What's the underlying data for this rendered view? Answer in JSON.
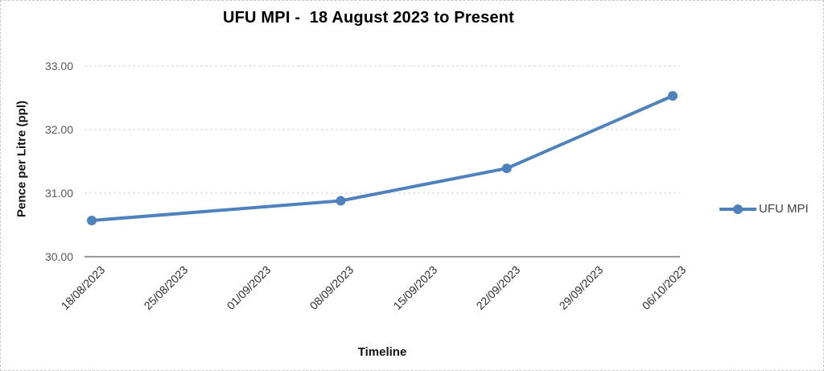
{
  "chart_data": {
    "type": "line",
    "title": "UFU MPI -  18 August 2023 to Present",
    "xlabel": "Timeline",
    "ylabel": "Pence per Litre (ppl)",
    "ylim": [
      30.0,
      33.0
    ],
    "grid": true,
    "legend_position": "right",
    "y_tick_labels": [
      "33.00",
      "32.00",
      "31.00",
      "30.00"
    ],
    "x_tick_labels": [
      "18/08/2023",
      "25/08/2023",
      "01/09/2023",
      "08/09/2023",
      "15/09/2023",
      "22/09/2023",
      "29/09/2023",
      "06/10/2023"
    ],
    "series": [
      {
        "name": "UFU MPI",
        "color": "#4F81BD",
        "x": [
          "18/08/2023",
          "08/09/2023",
          "22/09/2023",
          "06/10/2023"
        ],
        "x_tick_index": [
          0,
          3,
          5,
          7
        ],
        "values": [
          30.57,
          30.88,
          31.39,
          32.53
        ]
      }
    ],
    "colors": {
      "gridline": "#d2d2d2",
      "axis_line": "#9a9a9a",
      "y_tick_label": "#595959",
      "x_tick_label": "#2e2e2e",
      "legend_text": "#404040"
    }
  }
}
